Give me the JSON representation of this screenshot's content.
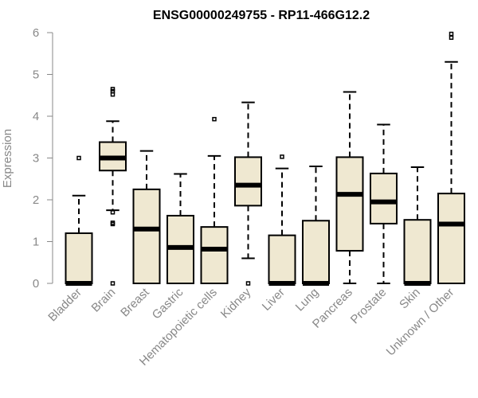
{
  "chart_data": {
    "type": "boxplot",
    "title": "ENSG00000249755 - RP11-466G12.2",
    "xlabel": "",
    "ylabel": "Expression",
    "ylim": [
      0,
      6
    ],
    "yticks": [
      "0",
      "1",
      "2",
      "3",
      "4",
      "5",
      "6"
    ],
    "grid": false,
    "box_fill": "#efe8d1",
    "box_stroke": "#000000",
    "axis_color": "#888888",
    "categories": [
      "Bladder",
      "Brain",
      "Breast",
      "Gastric",
      "Hematopoietic cells",
      "Kidney",
      "Liver",
      "Lung",
      "Pancreas",
      "Prostate",
      "Skin",
      "Unknown / Other"
    ],
    "series": [
      {
        "name": "Bladder",
        "whisker_low": 0,
        "q1": 0,
        "median": 0,
        "q3": 1.2,
        "whisker_high": 2.1,
        "outliers": [
          3.0
        ]
      },
      {
        "name": "Brain",
        "whisker_low": 1.75,
        "q1": 2.7,
        "median": 3.0,
        "q3": 3.38,
        "whisker_high": 3.88,
        "outliers": [
          4.65,
          4.6,
          4.52,
          1.7,
          1.45,
          1.42,
          0
        ]
      },
      {
        "name": "Breast",
        "whisker_low": 0,
        "q1": 0,
        "median": 1.3,
        "q3": 2.25,
        "whisker_high": 3.17,
        "outliers": []
      },
      {
        "name": "Gastric",
        "whisker_low": 0,
        "q1": 0,
        "median": 0.86,
        "q3": 1.62,
        "whisker_high": 2.62,
        "outliers": []
      },
      {
        "name": "Hematopoietic cells",
        "whisker_low": 0,
        "q1": 0,
        "median": 0.82,
        "q3": 1.35,
        "whisker_high": 3.05,
        "outliers": [
          3.93
        ]
      },
      {
        "name": "Kidney",
        "whisker_low": 0.6,
        "q1": 1.86,
        "median": 2.35,
        "q3": 3.02,
        "whisker_high": 4.33,
        "outliers": [
          0
        ]
      },
      {
        "name": "Liver",
        "whisker_low": 0,
        "q1": 0,
        "median": 0,
        "q3": 1.15,
        "whisker_high": 2.75,
        "outliers": [
          3.03
        ]
      },
      {
        "name": "Lung",
        "whisker_low": 0,
        "q1": 0,
        "median": 0,
        "q3": 1.5,
        "whisker_high": 2.8,
        "outliers": []
      },
      {
        "name": "Pancreas",
        "whisker_low": 0,
        "q1": 0.78,
        "median": 2.13,
        "q3": 3.02,
        "whisker_high": 4.58,
        "outliers": []
      },
      {
        "name": "Prostate",
        "whisker_low": 0,
        "q1": 1.43,
        "median": 1.95,
        "q3": 2.63,
        "whisker_high": 3.8,
        "outliers": []
      },
      {
        "name": "Skin",
        "whisker_low": 0,
        "q1": 0,
        "median": 0,
        "q3": 1.52,
        "whisker_high": 2.78,
        "outliers": []
      },
      {
        "name": "Unknown / Other",
        "whisker_low": 0,
        "q1": 0,
        "median": 1.42,
        "q3": 2.15,
        "whisker_high": 5.3,
        "outliers": [
          5.97,
          5.88
        ]
      }
    ]
  }
}
